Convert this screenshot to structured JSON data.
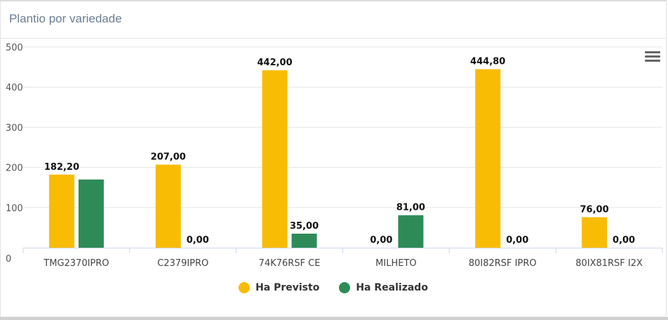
{
  "card": {
    "title": "Plantio por variedade"
  },
  "menu": {
    "icon": "hamburger-icon"
  },
  "colors": {
    "previsto": "#F9BC05",
    "realizado": "#2E8B57",
    "grid": "#e6e6e6",
    "axis": "#ccd6eb"
  },
  "chart_data": {
    "type": "bar",
    "title": "",
    "xlabel": "",
    "ylabel": "",
    "ylim": [
      0,
      500
    ],
    "yticks": [
      0,
      100,
      200,
      300,
      400,
      500
    ],
    "categories": [
      "TMG2370IPRO",
      "C2379IPRO",
      "74K76RSF CE",
      "MILHETO",
      "80I82RSF IPRO",
      "80IX81RSF I2X"
    ],
    "series": [
      {
        "name": "Ha Previsto",
        "color": "#F9BC05",
        "values": [
          182.2,
          207.0,
          442.0,
          0.0,
          444.8,
          76.0
        ],
        "labels": [
          "182,20",
          "207,00",
          "442,00",
          "0,00",
          "444,80",
          "76,00"
        ]
      },
      {
        "name": "Ha Realizado",
        "color": "#2E8B57",
        "values": [
          170.0,
          0.0,
          35.0,
          81.0,
          0.0,
          0.0
        ],
        "labels": [
          null,
          "0,00",
          "35,00",
          "81,00",
          "0,00",
          "0,00"
        ]
      }
    ],
    "grid": true,
    "legend_position": "bottom-center"
  }
}
